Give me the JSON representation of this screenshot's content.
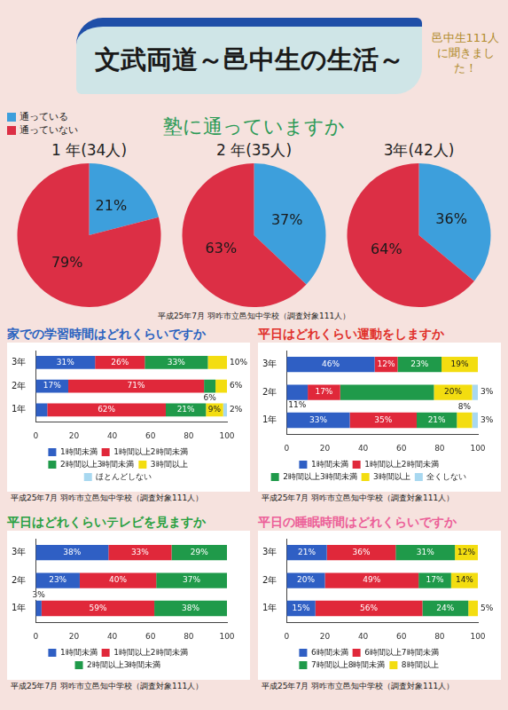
{
  "title": "文武両道～邑中生の生活～",
  "note": "邑中生111人に聞きました！",
  "pie_question": "塾に通っていますか",
  "pie_source": "平成25年7月 羽咋市立邑知中学校（調査対象111人）",
  "chart_data": [
    {
      "type": "pie",
      "title": "1 年(34人)",
      "categories": [
        "通っている",
        "通っていない"
      ],
      "values": [
        21,
        79
      ],
      "value_labels": [
        "21%",
        "79%"
      ],
      "colors": [
        "#3d9fdc",
        "#dc2f45"
      ],
      "data_labels": true
    },
    {
      "type": "pie",
      "title": "2 年(35人)",
      "categories": [
        "通っている",
        "通っていない"
      ],
      "values": [
        37,
        63
      ],
      "value_labels": [
        "37%",
        "63%"
      ],
      "colors": [
        "#3d9fdc",
        "#dc2f45"
      ],
      "data_labels": true
    },
    {
      "type": "pie",
      "title": "3年(42人)",
      "categories": [
        "通っている",
        "通っていない"
      ],
      "values": [
        36,
        64
      ],
      "value_labels": [
        "36%",
        "64%"
      ],
      "colors": [
        "#3d9fdc",
        "#dc2f45"
      ],
      "data_labels": true
    },
    {
      "type": "bar",
      "title": "家での学習時間はどれくらいですか",
      "orientation": "horizontal",
      "stacked": true,
      "categories": [
        "3年",
        "2年",
        "1年"
      ],
      "series": [
        {
          "name": "1時間未満",
          "color": "#2f5fc4",
          "values": [
            31,
            17,
            6
          ],
          "value_labels": [
            "31%",
            "17%",
            null
          ]
        },
        {
          "name": "1時間以上2時間未満",
          "color": "#e0283a",
          "values": [
            26,
            71,
            62
          ],
          "value_labels": [
            "26%",
            "71%",
            "62%"
          ]
        },
        {
          "name": "2時間以上3時間未満",
          "color": "#1f9a4a",
          "values": [
            33,
            6,
            21
          ],
          "value_labels": [
            "33%",
            "6%",
            "21%"
          ]
        },
        {
          "name": "3時間以上",
          "color": "#f3dd10",
          "values": [
            10,
            6,
            9
          ],
          "value_labels": [
            "10%",
            "6%",
            "9%"
          ]
        },
        {
          "name": "ほとんどしない",
          "color": "#a8d8f0",
          "values": [
            0,
            0,
            2
          ],
          "value_labels": [
            null,
            null,
            "2%"
          ]
        }
      ],
      "xlim": [
        0,
        100
      ],
      "xticks": [
        0,
        20,
        40,
        60,
        80,
        100
      ],
      "grid": false,
      "legend": "bottom",
      "data_labels": true,
      "source": "平成25年7月 羽咋市立邑知中学校（調査対象111人）"
    },
    {
      "type": "bar",
      "title": "平日はどれくらい運動をしますか",
      "orientation": "horizontal",
      "stacked": true,
      "categories": [
        "3年",
        "2年",
        "1年"
      ],
      "series": [
        {
          "name": "1時間未満",
          "color": "#2f5fc4",
          "values": [
            46,
            11,
            33
          ],
          "value_labels": [
            "46%",
            "11%",
            "33%"
          ]
        },
        {
          "name": "1時間以上2時間未満",
          "color": "#e0283a",
          "values": [
            12,
            17,
            35
          ],
          "value_labels": [
            "12%",
            "17%",
            "35%"
          ]
        },
        {
          "name": "2時間以上3時間未満",
          "color": "#1f9a4a",
          "values": [
            23,
            49,
            21
          ],
          "value_labels": [
            "23%",
            null,
            "21%"
          ]
        },
        {
          "name": "3時間以上",
          "color": "#f3dd10",
          "values": [
            19,
            20,
            8
          ],
          "value_labels": [
            "19%",
            "20%",
            "8%"
          ]
        },
        {
          "name": "全くしない",
          "color": "#a8d8f0",
          "values": [
            0,
            3,
            3
          ],
          "value_labels": [
            null,
            "3%",
            "3%"
          ]
        }
      ],
      "xlim": [
        0,
        100
      ],
      "xticks": [
        0,
        20,
        40,
        60,
        80,
        100
      ],
      "grid": false,
      "legend": "bottom",
      "data_labels": true,
      "source": "平成25年7月 羽咋市立邑知中学校（調査対象111人）"
    },
    {
      "type": "bar",
      "title": "平日はどれくらいテレビを見ますか",
      "orientation": "horizontal",
      "stacked": true,
      "categories": [
        "3年",
        "2年",
        "1年"
      ],
      "series": [
        {
          "name": "1時間未満",
          "color": "#2f5fc4",
          "values": [
            38,
            23,
            3
          ],
          "value_labels": [
            "38%",
            "23%",
            "3%"
          ]
        },
        {
          "name": "1時間以上2時間未満",
          "color": "#e0283a",
          "values": [
            33,
            40,
            59
          ],
          "value_labels": [
            "33%",
            "40%",
            "59%"
          ]
        },
        {
          "name": "2時間以上3時間未満",
          "color": "#1f9a4a",
          "values": [
            29,
            37,
            38
          ],
          "value_labels": [
            "29%",
            "37%",
            "38%"
          ]
        }
      ],
      "xlim": [
        0,
        100
      ],
      "xticks": [
        0,
        20,
        40,
        60,
        80,
        100
      ],
      "grid": false,
      "legend": "bottom",
      "data_labels": true,
      "source": "平成25年7月 羽咋市立邑知中学校（調査対象111人）"
    },
    {
      "type": "bar",
      "title": "平日の睡眠時間はどれくらいですか",
      "orientation": "horizontal",
      "stacked": true,
      "categories": [
        "3年",
        "2年",
        "1年"
      ],
      "series": [
        {
          "name": "6時間未満",
          "color": "#2f5fc4",
          "values": [
            21,
            20,
            15
          ],
          "value_labels": [
            "21%",
            "20%",
            "15%"
          ]
        },
        {
          "name": "6時間以上7時間未満",
          "color": "#e0283a",
          "values": [
            36,
            49,
            56
          ],
          "value_labels": [
            "36%",
            "49%",
            "56%"
          ]
        },
        {
          "name": "7時間以上8時間未満",
          "color": "#1f9a4a",
          "values": [
            31,
            17,
            24
          ],
          "value_labels": [
            "31%",
            "17%",
            "24%"
          ]
        },
        {
          "name": "8時間以上",
          "color": "#f3dd10",
          "values": [
            12,
            14,
            5
          ],
          "value_labels": [
            "12%",
            "14%",
            "5%"
          ]
        }
      ],
      "xlim": [
        0,
        100
      ],
      "xticks": [
        0,
        20,
        40,
        60,
        80,
        100
      ],
      "grid": false,
      "legend": "bottom",
      "data_labels": true,
      "source": "平成25年7月 羽咋市立邑知中学校（調査対象111人）"
    }
  ]
}
